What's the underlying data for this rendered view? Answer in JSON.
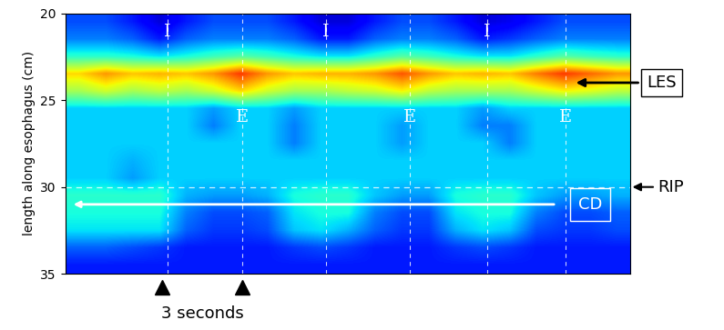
{
  "chart_data": {
    "type": "heatmap",
    "y_label": "length along esophagus (cm)",
    "xlim": [
      0,
      21
    ],
    "xticks": [],
    "ylim": [
      35,
      20
    ],
    "yticks": [
      20,
      25,
      30,
      35
    ],
    "tick_labels": "y",
    "color_range": [
      0,
      100
    ],
    "cells": [
      [
        20,
        20,
        15,
        8,
        15,
        20,
        20,
        20,
        15,
        8,
        8,
        15,
        20,
        20,
        15,
        8,
        10,
        15,
        20,
        20,
        20
      ],
      [
        25,
        25,
        22,
        15,
        22,
        25,
        25,
        25,
        22,
        15,
        15,
        22,
        25,
        25,
        22,
        15,
        18,
        22,
        25,
        25,
        25
      ],
      [
        40,
        40,
        38,
        35,
        38,
        42,
        45,
        42,
        38,
        35,
        35,
        40,
        45,
        42,
        38,
        35,
        35,
        40,
        45,
        42,
        40
      ],
      [
        68,
        75,
        70,
        72,
        70,
        75,
        85,
        75,
        70,
        72,
        72,
        75,
        82,
        75,
        70,
        72,
        70,
        78,
        85,
        80,
        75
      ],
      [
        55,
        60,
        55,
        58,
        55,
        60,
        68,
        60,
        55,
        55,
        58,
        60,
        65,
        58,
        55,
        55,
        55,
        60,
        65,
        62,
        58
      ],
      [
        33,
        33,
        33,
        33,
        33,
        28,
        33,
        33,
        28,
        33,
        33,
        33,
        33,
        33,
        33,
        28,
        33,
        33,
        33,
        33,
        33
      ],
      [
        33,
        33,
        33,
        33,
        33,
        25,
        33,
        33,
        25,
        33,
        33,
        33,
        28,
        33,
        33,
        25,
        25,
        33,
        33,
        33,
        33
      ],
      [
        33,
        33,
        33,
        33,
        33,
        33,
        33,
        33,
        25,
        33,
        33,
        33,
        28,
        33,
        33,
        33,
        25,
        33,
        33,
        33,
        33
      ],
      [
        33,
        33,
        30,
        33,
        33,
        33,
        33,
        33,
        33,
        33,
        33,
        33,
        33,
        33,
        33,
        33,
        33,
        33,
        33,
        33,
        33
      ],
      [
        33,
        33,
        28,
        33,
        33,
        33,
        33,
        33,
        33,
        33,
        33,
        33,
        33,
        33,
        33,
        33,
        33,
        33,
        33,
        33,
        33
      ],
      [
        40,
        40,
        40,
        40,
        30,
        28,
        28,
        30,
        38,
        40,
        40,
        32,
        28,
        28,
        38,
        40,
        40,
        32,
        28,
        28,
        30
      ],
      [
        38,
        38,
        38,
        38,
        25,
        20,
        20,
        22,
        35,
        38,
        38,
        25,
        20,
        20,
        35,
        38,
        38,
        25,
        20,
        20,
        22
      ],
      [
        35,
        35,
        35,
        35,
        22,
        18,
        18,
        20,
        32,
        35,
        30,
        22,
        18,
        18,
        30,
        35,
        32,
        20,
        18,
        18,
        20
      ],
      [
        22,
        22,
        20,
        18,
        15,
        15,
        15,
        15,
        18,
        20,
        18,
        15,
        15,
        15,
        18,
        20,
        18,
        15,
        15,
        15,
        15
      ],
      [
        15,
        15,
        15,
        15,
        15,
        15,
        15,
        15,
        15,
        15,
        15,
        15,
        15,
        15,
        15,
        15,
        15,
        15,
        15,
        15,
        15
      ]
    ],
    "events": [
      {
        "label": "I",
        "x": [
          3.8,
          9.7,
          15.7
        ]
      },
      {
        "label": "E",
        "x": [
          6.6,
          12.8,
          18.6
        ]
      }
    ],
    "landmarks": [
      {
        "label": "LES",
        "y": 24
      },
      {
        "label": "RIP",
        "y": 30
      },
      {
        "label": "CD",
        "y": 31
      }
    ],
    "scale_bar": {
      "label": "3 seconds",
      "x": [
        3.6,
        6.6
      ]
    }
  }
}
